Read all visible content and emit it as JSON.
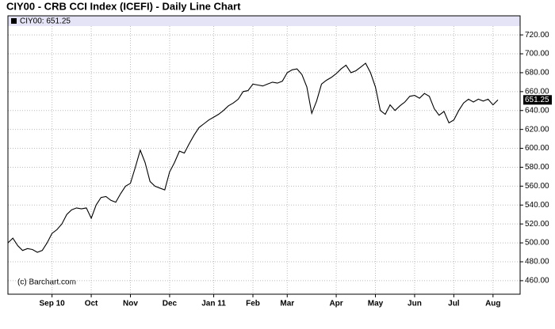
{
  "chart_data": {
    "type": "line",
    "title": "CIY00 - CRB CCI Index (ICEFI) - Daily Line Chart",
    "legend_label": "CIY00: 651.25",
    "last_value_label": "651.25",
    "watermark": "(c) Barchart.com",
    "color": "#000000",
    "grid": true,
    "categories": [
      null,
      null,
      null,
      null,
      null,
      null,
      null,
      null,
      null,
      "Sep 10",
      null,
      null,
      null,
      null,
      null,
      null,
      null,
      "Oct",
      null,
      null,
      null,
      null,
      null,
      null,
      null,
      "Nov",
      null,
      null,
      null,
      null,
      null,
      null,
      null,
      "Dec",
      null,
      null,
      null,
      null,
      null,
      null,
      null,
      null,
      "Jan 11",
      null,
      null,
      null,
      null,
      null,
      null,
      null,
      "Feb",
      null,
      null,
      null,
      null,
      null,
      null,
      "Mar",
      null,
      null,
      null,
      null,
      null,
      null,
      null,
      null,
      null,
      "Apr",
      null,
      null,
      null,
      null,
      null,
      null,
      null,
      "May",
      null,
      null,
      null,
      null,
      null,
      null,
      null,
      "Jun",
      null,
      null,
      null,
      null,
      null,
      null,
      null,
      "Jul",
      null,
      null,
      null,
      null,
      null,
      null,
      null,
      "Aug",
      null
    ],
    "values": [
      500,
      505,
      497,
      492,
      494,
      493,
      490,
      492,
      500,
      510,
      514,
      520,
      530,
      535,
      537,
      536,
      537,
      526,
      540,
      548,
      549,
      545,
      543,
      552,
      560,
      563,
      580,
      598,
      585,
      565,
      560,
      558,
      556,
      575,
      585,
      597,
      595,
      605,
      614,
      622,
      626,
      630,
      633,
      636,
      640,
      645,
      648,
      652,
      660,
      661,
      668,
      667,
      666,
      668,
      670,
      669,
      671,
      680,
      683,
      684,
      678,
      665,
      637,
      650,
      668,
      672,
      675,
      679,
      684,
      688,
      680,
      682,
      686,
      690,
      680,
      665,
      640,
      636,
      646,
      640,
      645,
      649,
      655,
      656,
      653,
      658,
      655,
      642,
      635,
      639,
      627,
      630,
      640,
      648,
      652,
      649,
      652,
      650,
      652,
      646,
      651.25
    ],
    "ylim": [
      445.7,
      729.3
    ],
    "yticks": [
      {
        "value": 460,
        "label": "460.00"
      },
      {
        "value": 480,
        "label": "480.00"
      },
      {
        "value": 500,
        "label": "500.00"
      },
      {
        "value": 520,
        "label": "520.00"
      },
      {
        "value": 540,
        "label": "540.00"
      },
      {
        "value": 560,
        "label": "560.00"
      },
      {
        "value": 580,
        "label": "580.00"
      },
      {
        "value": 600,
        "label": "600.00"
      },
      {
        "value": 620,
        "label": "620.00"
      },
      {
        "value": 640,
        "label": "640.00"
      },
      {
        "value": 660,
        "label": "660.00"
      },
      {
        "value": 680,
        "label": "680.00"
      },
      {
        "value": 700,
        "label": "700.00"
      },
      {
        "value": 720,
        "label": "720.00"
      }
    ]
  }
}
